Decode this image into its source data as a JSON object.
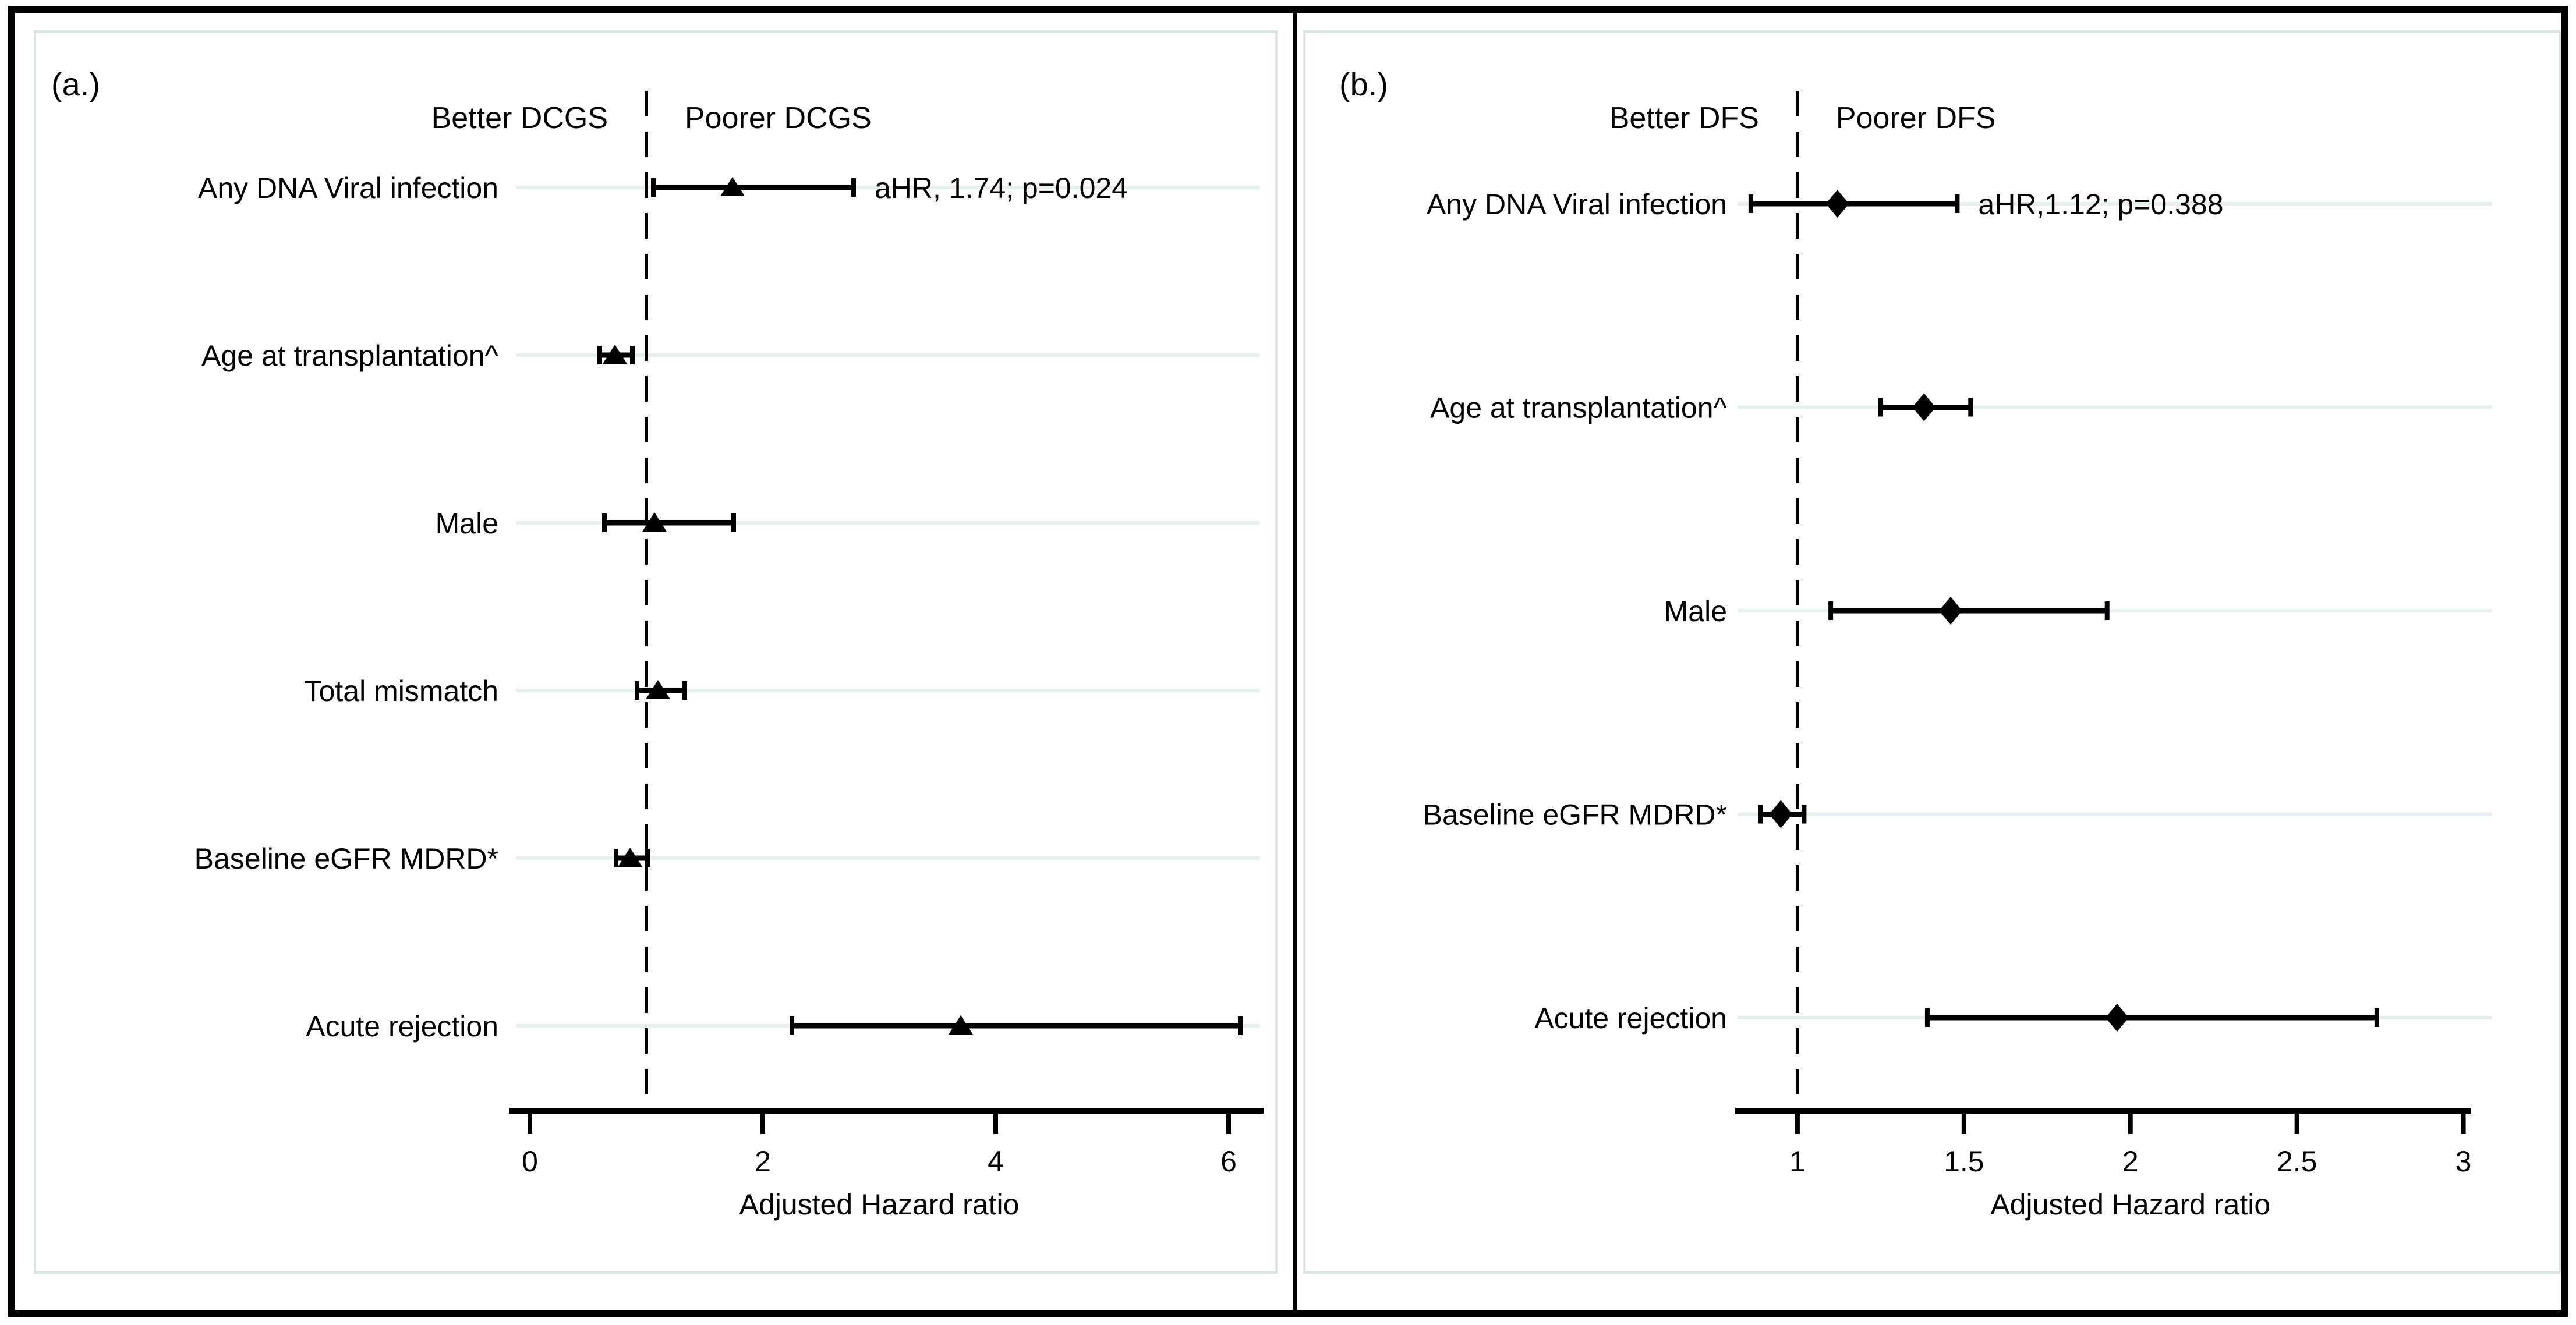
{
  "colors": {
    "marker": "#000000",
    "axis": "#000000",
    "gridline": "#e6eff1",
    "panel_border": "#d9e4e6",
    "background": "#ffffff"
  },
  "chart_data": [
    {
      "type": "scatter",
      "subtype": "forest-plot",
      "panel_label": "(a.)",
      "outcome": "DCGS",
      "direction_labels": {
        "left": "Better DCGS",
        "right": "Poorer DCGS"
      },
      "marker": "triangle",
      "xlabel": "Adjusted Hazard ratio",
      "x_ticks": [
        0,
        2,
        4,
        6
      ],
      "x_tick_labels": [
        "0",
        "2",
        "4",
        "6"
      ],
      "xlim": [
        -0.18,
        6.28
      ],
      "reference_line": 1,
      "grid": true,
      "rows": [
        {
          "label": "Any DNA Viral infection",
          "hr": 1.74,
          "ci_low": 1.06,
          "ci_high": 2.78,
          "annotation": "aHR, 1.74; p=0.024"
        },
        {
          "label": "Age at transplantation^",
          "hr": 0.73,
          "ci_low": 0.6,
          "ci_high": 0.88
        },
        {
          "label": "Male",
          "hr": 1.07,
          "ci_low": 0.64,
          "ci_high": 1.75
        },
        {
          "label": "Total mismatch",
          "hr": 1.1,
          "ci_low": 0.92,
          "ci_high": 1.33
        },
        {
          "label": "Baseline eGFR MDRD*",
          "hr": 0.86,
          "ci_low": 0.74,
          "ci_high": 1.01
        },
        {
          "label": "Acute rejection",
          "hr": 3.7,
          "ci_low": 2.25,
          "ci_high": 6.1
        }
      ]
    },
    {
      "type": "scatter",
      "subtype": "forest-plot",
      "panel_label": "(b.)",
      "outcome": "DFS",
      "direction_labels": {
        "left": "Better DFS",
        "right": "Poorer DFS"
      },
      "marker": "diamond",
      "xlabel": "Adjusted Hazard ratio",
      "x_ticks": [
        1,
        1.5,
        2,
        2.5,
        3
      ],
      "x_tick_labels": [
        "1",
        "1.5",
        "2",
        "2.5",
        "3"
      ],
      "xlim": [
        0.82,
        3.02
      ],
      "reference_line": 1,
      "grid": true,
      "rows": [
        {
          "label": "Any DNA Viral infection",
          "hr": 1.12,
          "ci_low": 0.86,
          "ci_high": 1.48,
          "annotation": "aHR,1.12; p=0.388"
        },
        {
          "label": "Age at transplantation^",
          "hr": 1.38,
          "ci_low": 1.25,
          "ci_high": 1.52
        },
        {
          "label": "Male",
          "hr": 1.46,
          "ci_low": 1.1,
          "ci_high": 1.93
        },
        {
          "label": "Baseline eGFR MDRD*",
          "hr": 0.95,
          "ci_low": 0.89,
          "ci_high": 1.02
        },
        {
          "label": "Acute rejection",
          "hr": 1.96,
          "ci_low": 1.39,
          "ci_high": 2.74
        }
      ]
    }
  ]
}
